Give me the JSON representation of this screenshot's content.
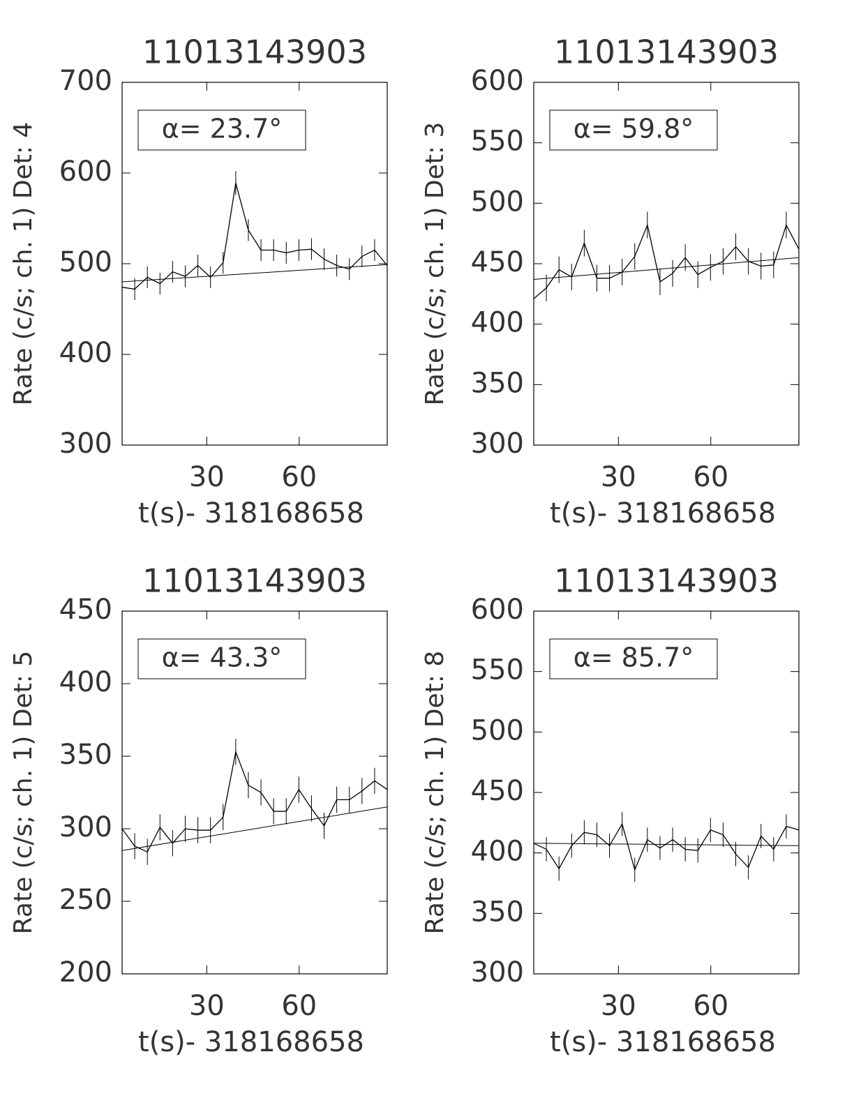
{
  "chart_data": [
    {
      "type": "line",
      "title": "11013143903",
      "xlabel": "t(s)- 318168658",
      "ylabel": "Rate (c/s; ch. 1) Det: 4",
      "annotation": "α= 23.7°",
      "color": "#000000",
      "x": [
        2.5,
        6.6,
        10.7,
        14.8,
        18.9,
        23.0,
        27.1,
        31.2,
        35.3,
        39.4,
        43.5,
        47.6,
        51.7,
        55.8,
        59.9,
        64.0,
        68.1,
        72.2,
        76.3,
        80.4,
        84.5,
        88.6
      ],
      "values": [
        474,
        472,
        485,
        478,
        491,
        486,
        498,
        485,
        501,
        589,
        537,
        515,
        515,
        512,
        515,
        516,
        505,
        498,
        494,
        508,
        515,
        498
      ],
      "errors": [
        12,
        12,
        12,
        12,
        12,
        12,
        12,
        12,
        12,
        13,
        12,
        12,
        12,
        12,
        12,
        12,
        12,
        12,
        12,
        12,
        12,
        12
      ],
      "fit": {
        "x": [
          2.5,
          88.6
        ],
        "values": [
          480,
          499
        ]
      },
      "xlim": [
        2.5,
        88.6
      ],
      "xticks": [
        30,
        60
      ],
      "ylim": [
        300,
        700
      ],
      "yticks": [
        300,
        400,
        500,
        600,
        700
      ]
    },
    {
      "type": "line",
      "title": "11013143903",
      "xlabel": "t(s)- 318168658",
      "ylabel": "Rate (c/s; ch. 1) Det: 3",
      "annotation": "α= 59.8°",
      "color": "#000000",
      "x": [
        2.5,
        6.6,
        10.7,
        14.8,
        18.9,
        23.0,
        27.1,
        31.2,
        35.3,
        39.4,
        43.5,
        47.6,
        51.7,
        55.8,
        59.9,
        64.0,
        68.1,
        72.2,
        76.3,
        80.4,
        84.5,
        88.6
      ],
      "values": [
        421,
        430,
        445,
        439,
        467,
        438,
        438,
        443,
        456,
        482,
        435,
        442,
        455,
        441,
        447,
        452,
        464,
        452,
        448,
        449,
        482,
        462
      ],
      "errors": [
        11,
        11,
        11,
        11,
        11,
        11,
        11,
        11,
        11,
        11,
        11,
        11,
        11,
        11,
        11,
        11,
        11,
        11,
        11,
        11,
        11,
        11
      ],
      "fit": {
        "x": [
          2.5,
          88.6
        ],
        "values": [
          437,
          455
        ]
      },
      "xlim": [
        2.5,
        88.6
      ],
      "xticks": [
        30,
        60
      ],
      "ylim": [
        300,
        600
      ],
      "yticks": [
        300,
        350,
        400,
        450,
        500,
        550,
        600
      ]
    },
    {
      "type": "line",
      "title": "11013143903",
      "xlabel": "t(s)- 318168658",
      "ylabel": "Rate (c/s; ch. 1) Det: 5",
      "annotation": "α= 43.3°",
      "color": "#000000",
      "x": [
        2.5,
        6.6,
        10.7,
        14.8,
        18.9,
        23.0,
        27.1,
        31.2,
        35.3,
        39.4,
        43.5,
        47.6,
        51.7,
        55.8,
        59.9,
        64.0,
        68.1,
        72.2,
        76.3,
        80.4,
        84.5,
        88.6
      ],
      "values": [
        300,
        288,
        284,
        301,
        290,
        300,
        299,
        299,
        308,
        353,
        330,
        325,
        312,
        312,
        327,
        314,
        302,
        320,
        320,
        326,
        333,
        327
      ],
      "errors": [
        9,
        9,
        9,
        9,
        9,
        9,
        9,
        9,
        9,
        9,
        9,
        9,
        9,
        9,
        9,
        9,
        9,
        9,
        9,
        9,
        9,
        9
      ],
      "fit": {
        "x": [
          2.5,
          88.6
        ],
        "values": [
          285,
          315
        ]
      },
      "xlim": [
        2.5,
        88.6
      ],
      "xticks": [
        30,
        60
      ],
      "ylim": [
        200,
        450
      ],
      "yticks": [
        200,
        250,
        300,
        350,
        400,
        450
      ]
    },
    {
      "type": "line",
      "title": "11013143903",
      "xlabel": "t(s)- 318168658",
      "ylabel": "Rate (c/s; ch. 1) Det: 8",
      "annotation": "α= 85.7°",
      "color": "#000000",
      "x": [
        2.5,
        6.6,
        10.7,
        14.8,
        18.9,
        23.0,
        27.1,
        31.2,
        35.3,
        39.4,
        43.5,
        47.6,
        51.7,
        55.8,
        59.9,
        64.0,
        68.1,
        72.2,
        76.3,
        80.4,
        84.5,
        88.6
      ],
      "values": [
        408,
        403,
        387,
        406,
        417,
        415,
        406,
        424,
        386,
        411,
        404,
        411,
        403,
        402,
        419,
        415,
        399,
        388,
        414,
        403,
        422,
        419
      ],
      "errors": [
        10,
        10,
        10,
        10,
        10,
        10,
        10,
        10,
        10,
        10,
        10,
        10,
        10,
        10,
        10,
        10,
        10,
        10,
        10,
        10,
        10,
        10
      ],
      "fit": {
        "x": [
          2.5,
          88.6
        ],
        "values": [
          408,
          406
        ]
      },
      "xlim": [
        2.5,
        88.6
      ],
      "xticks": [
        30,
        60
      ],
      "ylim": [
        300,
        600
      ],
      "yticks": [
        300,
        350,
        400,
        450,
        500,
        550,
        600
      ]
    }
  ]
}
